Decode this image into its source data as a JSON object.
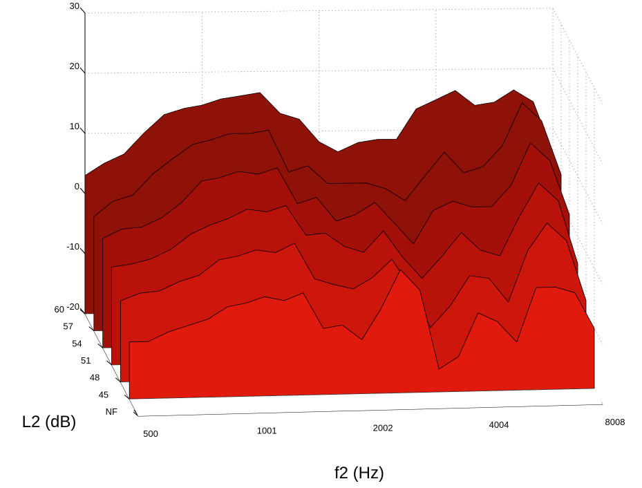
{
  "chart_data": {
    "type": "area",
    "subtype": "3d-waterfall",
    "xlabel": "f2 (Hz)",
    "ylabel": "L2 (dB)",
    "zlabel": "",
    "x_ticks": [
      "500",
      "1001",
      "2002",
      "4004",
      "8008"
    ],
    "y_ticks": [
      "NF",
      "45",
      "48",
      "51",
      "54",
      "57",
      "60"
    ],
    "z_ticks": [
      "-20",
      "-10",
      "0",
      "10",
      "20",
      "30"
    ],
    "zlim": [
      -20,
      30
    ],
    "grid": true,
    "colors": [
      "#f51a12",
      "#e01a0d",
      "#cd160c",
      "#b8120b",
      "#a3100a",
      "#8f1208"
    ],
    "x": [
      500,
      560,
      630,
      710,
      800,
      900,
      1001,
      1120,
      1260,
      1410,
      1590,
      1780,
      2002,
      2240,
      2520,
      2830,
      3170,
      3560,
      4004,
      4490,
      5040,
      5660,
      6350,
      7130,
      8008
    ],
    "series": [
      {
        "name": "45",
        "values": [
          -10.5,
          -10.5,
          -9,
          -8,
          -7,
          -5,
          -4.5,
          -3.5,
          -4.2,
          -3,
          -9,
          -8.5,
          -11,
          -6,
          0.5,
          -3,
          -16.2,
          -14.2,
          -7,
          -8.5,
          -12,
          -3,
          -3,
          -4,
          -10
        ]
      },
      {
        "name": "48",
        "values": [
          -6.5,
          -5.3,
          -5,
          -3.5,
          -2.5,
          0,
          0.5,
          1.5,
          1,
          2.5,
          -3.5,
          -4.5,
          -5.3,
          -3.5,
          -0.5,
          -5.5,
          -12,
          -8.5,
          -3.5,
          -4,
          -8,
          0.5,
          5,
          2,
          -8
        ]
      },
      {
        "name": "51",
        "values": [
          -3.7,
          -3.3,
          -2.5,
          -1,
          1.5,
          3,
          4,
          5.5,
          5,
          6,
          1,
          1.3,
          -1,
          -2,
          1.5,
          -3,
          -6.5,
          -3,
          1,
          -2,
          -3,
          3.5,
          9,
          6,
          -4.5
        ]
      },
      {
        "name": "54",
        "values": [
          -1.8,
          -0.3,
          0,
          1.5,
          4,
          7.5,
          8,
          9,
          8.5,
          9.5,
          3.5,
          4.5,
          0.5,
          1.5,
          3.5,
          0,
          -3.5,
          2,
          3.5,
          2.5,
          2.5,
          6,
          13,
          10,
          1
        ]
      },
      {
        "name": "57",
        "values": [
          -1,
          1.5,
          2.5,
          6,
          8.5,
          10.8,
          11.5,
          12.5,
          12.5,
          13,
          6,
          7,
          4,
          4,
          4,
          3,
          1,
          5,
          9,
          5.5,
          6.5,
          10,
          17,
          14,
          5
        ]
      },
      {
        "name": "60",
        "values": [
          3,
          5,
          6.5,
          10,
          13,
          14,
          14.5,
          15.5,
          16,
          16.5,
          13,
          12,
          8.2,
          6.5,
          8,
          8.5,
          8.5,
          13.5,
          15,
          16.5,
          14,
          14.5,
          16.5,
          14.5,
          6
        ]
      }
    ]
  }
}
